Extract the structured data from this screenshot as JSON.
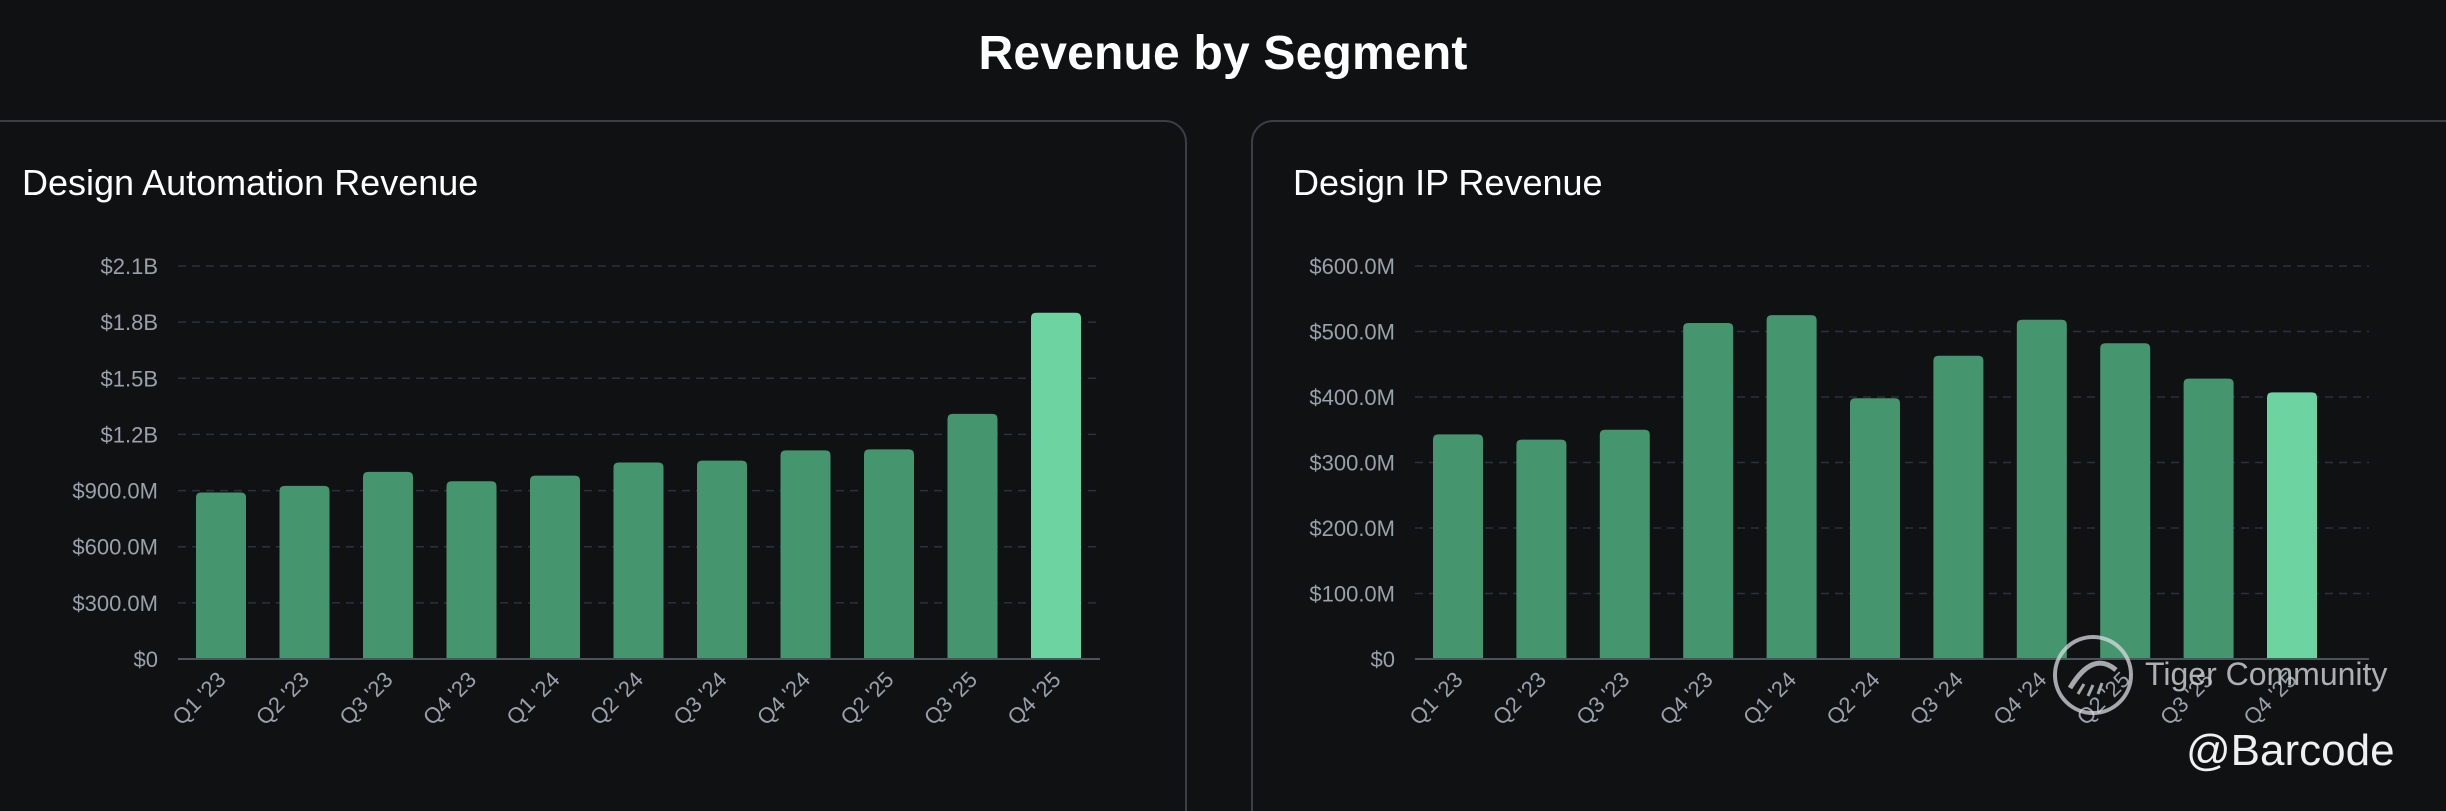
{
  "header": {
    "title": "Revenue by Segment"
  },
  "colors": {
    "bar": "#45966f",
    "bar_highlight": "#6dd3a0",
    "grid": "#2a3140",
    "axis": "#4d535c",
    "tick": "#9aa1ac"
  },
  "chart_data": [
    {
      "type": "bar",
      "title": "Design Automation Revenue",
      "categories": [
        "Q1 '23",
        "Q2 '23",
        "Q3 '23",
        "Q4 '23",
        "Q1 '24",
        "Q2 '24",
        "Q3 '24",
        "Q4 '24",
        "Q2 '25",
        "Q3 '25",
        "Q4 '25"
      ],
      "values": [
        890,
        925,
        1000,
        950,
        980,
        1050,
        1060,
        1115,
        1120,
        1310,
        1850
      ],
      "unit": "USD millions",
      "ylim": [
        0,
        2100
      ],
      "yticks": [
        0,
        300,
        600,
        900,
        1200,
        1500,
        1800,
        2100
      ],
      "ytick_labels": [
        "$0",
        "$300.0M",
        "$600.0M",
        "$900.0M",
        "$1.2B",
        "$1.5B",
        "$1.8B",
        "$2.1B"
      ],
      "highlight_index": 10,
      "xlabel": "",
      "ylabel": "",
      "grid": true
    },
    {
      "type": "bar",
      "title": "Design IP Revenue",
      "categories": [
        "Q1 '23",
        "Q2 '23",
        "Q3 '23",
        "Q4 '23",
        "Q1 '24",
        "Q2 '24",
        "Q3 '24",
        "Q4 '24",
        "Q2 '25",
        "Q3 '25",
        "Q4 '25"
      ],
      "values": [
        343,
        335,
        350,
        513,
        525,
        398,
        463,
        518,
        482,
        428,
        407
      ],
      "unit": "USD millions",
      "ylim": [
        0,
        600
      ],
      "yticks": [
        0,
        100,
        200,
        300,
        400,
        500,
        600
      ],
      "ytick_labels": [
        "$0",
        "$100.0M",
        "$200.0M",
        "$300.0M",
        "$400.0M",
        "$500.0M",
        "$600.0M"
      ],
      "highlight_index": 10,
      "xlabel": "",
      "ylabel": "",
      "grid": true
    }
  ],
  "watermark": {
    "community": "Tiger Community",
    "handle": "@Barcode",
    "logo_icon": "tiger-logo-icon"
  }
}
